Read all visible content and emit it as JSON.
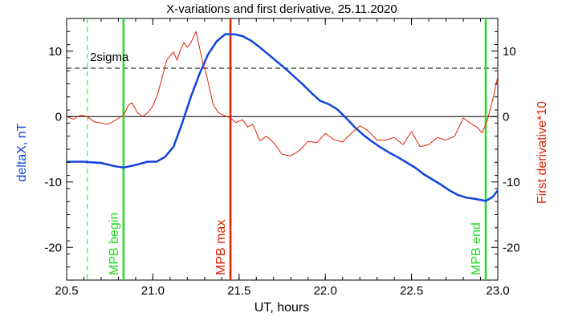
{
  "chart_data": {
    "type": "line",
    "title": "X-variations and first derivative, 25.11.2020",
    "xlabel": "UT, hours",
    "ylabel_left": "deltaX, nT",
    "ylabel_right": "First derivative*10",
    "xlim": [
      20.5,
      23.0
    ],
    "ylim": [
      -25,
      15
    ],
    "x_ticks": [
      20.5,
      21.0,
      21.5,
      22.0,
      22.5,
      23.0
    ],
    "x_tick_labels": [
      "20.5",
      "21.0",
      "21.5",
      "22.0",
      "22.5",
      "23.0"
    ],
    "y_ticks": [
      10,
      0,
      -10,
      -20
    ],
    "y_tick_labels": [
      "10",
      "0",
      "-10",
      "-20"
    ],
    "grid": false,
    "zero_line": 0,
    "sigma_line": {
      "value": 7.4,
      "label": "2sigma"
    },
    "vertical_markers": [
      {
        "x": 20.62,
        "label": "",
        "color": "#22dd22",
        "style": "dashed"
      },
      {
        "x": 20.83,
        "label": "MPB begin",
        "color": "#22dd22",
        "style": "solid"
      },
      {
        "x": 21.45,
        "label": "MPB max",
        "color": "#dd2200",
        "style": "solid"
      },
      {
        "x": 22.93,
        "label": "MPB end",
        "color": "#22dd22",
        "style": "solid"
      }
    ],
    "series": [
      {
        "color": "#1144dd",
        "x": [
          20.5,
          20.6,
          20.7,
          20.78,
          20.83,
          20.9,
          20.97,
          21.02,
          21.07,
          21.12,
          21.17,
          21.22,
          21.27,
          21.32,
          21.37,
          21.42,
          21.47,
          21.52,
          21.57,
          21.62,
          21.67,
          21.72,
          21.77,
          21.82,
          21.87,
          21.92,
          21.97,
          22.02,
          22.07,
          22.12,
          22.17,
          22.22,
          22.27,
          22.32,
          22.37,
          22.42,
          22.47,
          22.52,
          22.57,
          22.62,
          22.67,
          22.72,
          22.77,
          22.82,
          22.87,
          22.93,
          22.97,
          23.0
        ],
        "y": [
          -6.9,
          -6.9,
          -7.1,
          -7.6,
          -7.8,
          -7.4,
          -6.9,
          -6.9,
          -6.2,
          -4.6,
          -1.0,
          3.0,
          6.5,
          9.5,
          11.5,
          12.6,
          12.6,
          12.3,
          11.6,
          10.6,
          9.5,
          8.4,
          7.3,
          6.1,
          4.9,
          3.6,
          2.4,
          1.9,
          1.1,
          -0.2,
          -1.6,
          -2.8,
          -3.8,
          -4.7,
          -5.5,
          -6.2,
          -7.0,
          -7.8,
          -8.8,
          -9.6,
          -10.4,
          -11.3,
          -12.0,
          -12.4,
          -12.6,
          -12.9,
          -12.3,
          -11.3
        ]
      },
      {
        "color": "#dd2200",
        "x": [
          20.5,
          20.54,
          20.58,
          20.62,
          20.66,
          20.7,
          20.74,
          20.78,
          20.83,
          20.86,
          20.88,
          20.91,
          20.94,
          20.97,
          21.0,
          21.03,
          21.06,
          21.08,
          21.1,
          21.12,
          21.14,
          21.16,
          21.18,
          21.2,
          21.22,
          21.24,
          21.25,
          21.27,
          21.29,
          21.31,
          21.33,
          21.35,
          21.38,
          21.41,
          21.45,
          21.48,
          21.52,
          21.55,
          21.58,
          21.62,
          21.66,
          21.7,
          21.75,
          21.8,
          21.85,
          21.9,
          21.95,
          22.0,
          22.05,
          22.1,
          22.15,
          22.2,
          22.25,
          22.3,
          22.35,
          22.4,
          22.45,
          22.5,
          22.55,
          22.6,
          22.65,
          22.7,
          22.75,
          22.8,
          22.85,
          22.88,
          22.91,
          22.94,
          22.97,
          23.0
        ],
        "y": [
          0.0,
          -0.4,
          0.2,
          0.0,
          -0.8,
          -1.0,
          -1.2,
          -0.6,
          0.2,
          1.8,
          2.1,
          0.6,
          0.0,
          0.6,
          1.6,
          3.6,
          6.6,
          8.6,
          9.3,
          9.9,
          8.6,
          10.2,
          11.3,
          10.6,
          11.3,
          12.4,
          13.0,
          10.6,
          8.1,
          6.5,
          4.1,
          1.8,
          0.6,
          0.2,
          -0.2,
          -0.9,
          -0.5,
          -1.6,
          -1.2,
          -3.7,
          -3.0,
          -4.0,
          -5.8,
          -6.0,
          -5.2,
          -3.8,
          -4.0,
          -2.6,
          -3.5,
          -3.9,
          -2.6,
          -1.4,
          -2.2,
          -3.6,
          -3.6,
          -3.2,
          -4.3,
          -2.3,
          -4.6,
          -4.3,
          -3.2,
          -3.6,
          -3.0,
          -0.2,
          -1.2,
          -1.6,
          -2.5,
          -0.5,
          2.5,
          6.1
        ]
      }
    ]
  }
}
